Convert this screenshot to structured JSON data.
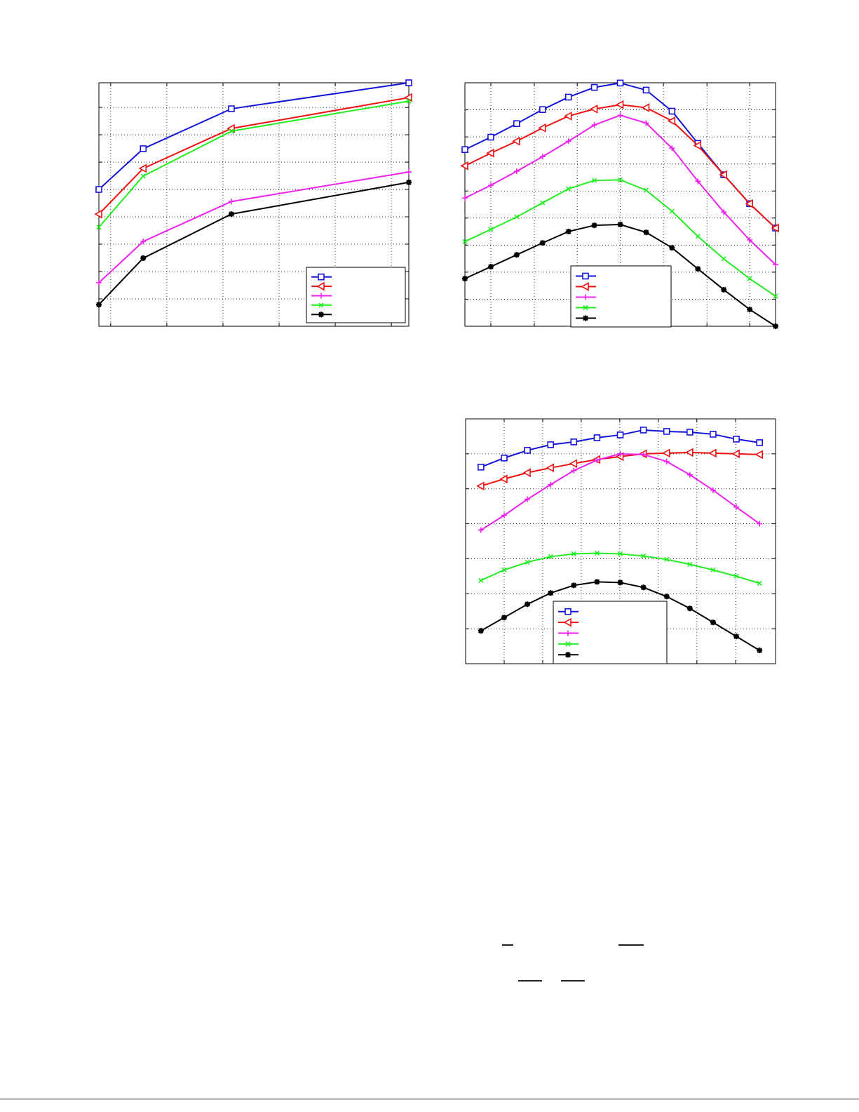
{
  "colors": {
    "series": [
      "#1414d8",
      "#ee1111",
      "#ee22ee",
      "#22ee22",
      "#000000"
    ]
  },
  "markers": [
    "square",
    "triangle-left",
    "plus",
    "x",
    "star"
  ],
  "chart_data": [
    {
      "type": "line",
      "grid": true,
      "legend": "bottom-right",
      "xlim": [
        -0.21,
        5.31
      ],
      "ylim": [
        0,
        8.9
      ],
      "xticks": [
        0,
        1,
        2,
        3,
        4,
        5
      ],
      "yticks": [
        1,
        2,
        3,
        4,
        5,
        6,
        7,
        8
      ],
      "x": [
        -0.21,
        0.58,
        2.15,
        5.31
      ],
      "series": [
        {
          "values": [
            5.0,
            6.49,
            7.95,
            8.9
          ]
        },
        {
          "values": [
            4.1,
            5.77,
            7.23,
            8.36
          ]
        },
        {
          "values": [
            1.59,
            3.1,
            4.56,
            5.64
          ]
        },
        {
          "values": [
            3.62,
            5.49,
            7.13,
            8.23
          ]
        },
        {
          "values": [
            0.79,
            2.49,
            4.1,
            5.26
          ]
        }
      ]
    },
    {
      "type": "line",
      "grid": true,
      "legend": "bottom-center",
      "xlim": [
        0,
        12
      ],
      "ylim": [
        0,
        9
      ],
      "xticks": [
        1,
        2.68,
        4.34,
        6,
        7.67,
        9.35,
        11
      ],
      "yticks": [
        1,
        2,
        3,
        4,
        5,
        6,
        7,
        8
      ],
      "x": [
        0,
        1,
        2,
        3,
        4,
        5,
        6,
        7,
        8,
        9,
        10,
        11,
        12
      ],
      "series": [
        {
          "values": [
            6.53,
            6.99,
            7.49,
            8.01,
            8.47,
            8.83,
            8.99,
            8.73,
            7.95,
            6.76,
            5.6,
            4.53,
            3.63
          ]
        },
        {
          "values": [
            5.93,
            6.4,
            6.84,
            7.33,
            7.77,
            8.03,
            8.19,
            8.08,
            7.59,
            6.68,
            5.6,
            4.53,
            3.63
          ]
        },
        {
          "values": [
            4.74,
            5.21,
            5.73,
            6.27,
            6.84,
            7.44,
            7.8,
            7.51,
            6.58,
            5.36,
            4.22,
            3.19,
            2.28
          ]
        },
        {
          "values": [
            3.13,
            3.58,
            4.04,
            4.56,
            5.08,
            5.39,
            5.41,
            5.03,
            4.25,
            3.32,
            2.49,
            1.76,
            1.11
          ]
        },
        {
          "values": [
            1.76,
            2.2,
            2.64,
            3.08,
            3.5,
            3.73,
            3.76,
            3.47,
            2.9,
            2.12,
            1.35,
            0.62,
            0
          ]
        }
      ]
    },
    {
      "type": "line",
      "grid": true,
      "legend": "bottom-center",
      "xlim": [
        -0.66,
        12.69
      ],
      "ylim": [
        0,
        7
      ],
      "xticks": [
        1,
        2.66,
        4.32,
        5.98,
        7.64,
        9.3,
        10.97
      ],
      "yticks": [
        1,
        2,
        3,
        4,
        5,
        6
      ],
      "x": [
        0,
        1,
        2,
        3,
        4,
        5,
        6,
        7,
        8,
        9,
        10,
        11,
        12
      ],
      "series": [
        {
          "values": [
            5.62,
            5.88,
            6.1,
            6.26,
            6.34,
            6.46,
            6.54,
            6.68,
            6.64,
            6.62,
            6.56,
            6.42,
            6.32
          ]
        },
        {
          "values": [
            5.08,
            5.28,
            5.46,
            5.6,
            5.72,
            5.84,
            5.92,
            6.0,
            6.02,
            6.04,
            6.02,
            6.0,
            5.98
          ]
        },
        {
          "values": [
            3.82,
            4.24,
            4.7,
            5.12,
            5.52,
            5.82,
            6.0,
            5.98,
            5.78,
            5.4,
            4.96,
            4.48,
            4.0
          ]
        },
        {
          "values": [
            2.38,
            2.68,
            2.9,
            3.06,
            3.14,
            3.16,
            3.14,
            3.08,
            2.98,
            2.84,
            2.68,
            2.5,
            2.3
          ]
        },
        {
          "values": [
            0.94,
            1.32,
            1.7,
            2.02,
            2.24,
            2.34,
            2.32,
            2.18,
            1.92,
            1.58,
            1.18,
            0.78,
            0.38
          ]
        }
      ]
    }
  ]
}
